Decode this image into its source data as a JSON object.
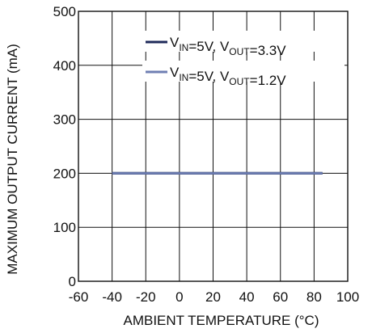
{
  "chart_data": {
    "type": "line",
    "xlabel": "AMBIENT TEMPERATURE (°C)",
    "ylabel": "MAXIMUM OUTPUT CURRENT (mA)",
    "xlim": [
      -60,
      100
    ],
    "ylim": [
      0,
      500
    ],
    "xticks": [
      "-60",
      "-40",
      "-20",
      "0",
      "20",
      "40",
      "60",
      "80",
      "100"
    ],
    "yticks": [
      "0",
      "100",
      "200",
      "300",
      "400",
      "500"
    ],
    "grid": true,
    "legend_position": "top-right",
    "series": [
      {
        "name": "V_IN=5V, V_OUT=3.3V",
        "legend": {
          "a": "V",
          "a_sub": "IN",
          "b": "=5V, V",
          "b_sub": "OUT",
          "c": "=3.3V"
        },
        "color": "#1f2a5a",
        "x": [
          -40,
          85
        ],
        "y": [
          200,
          200
        ]
      },
      {
        "name": "V_IN=5V, V_OUT=1.2V",
        "legend": {
          "a": "V",
          "a_sub": "IN",
          "b": "=5V, V",
          "b_sub": "OUT",
          "c": "=1.2V"
        },
        "color": "#6f7fb3",
        "x": [
          -40,
          85
        ],
        "y": [
          200,
          200
        ]
      }
    ]
  }
}
